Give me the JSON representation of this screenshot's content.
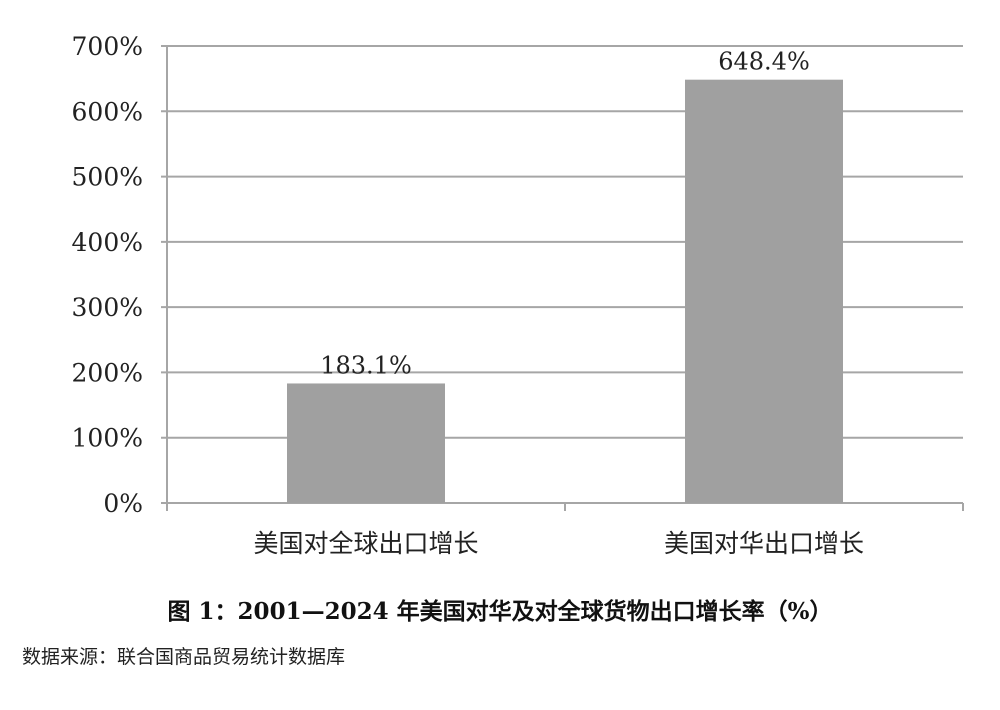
{
  "chart_data": {
    "type": "bar",
    "title": "图 1：2001—2024 年美国对华及对全球货物出口增长率（%）",
    "source": "数据来源：联合国商品贸易统计数据库",
    "categories": [
      "美国对全球出口增长",
      "美国对华出口增长"
    ],
    "values": [
      183.1,
      648.4
    ],
    "data_labels": [
      "183.1%",
      "648.4%"
    ],
    "ylim": [
      0,
      700
    ],
    "yticks": [
      0,
      100,
      200,
      300,
      400,
      500,
      600,
      700
    ],
    "ytick_labels": [
      "0%",
      "100%",
      "200%",
      "300%",
      "400%",
      "500%",
      "600%",
      "700%"
    ],
    "xlabel": "",
    "ylabel": "",
    "grid": true,
    "colors": {
      "bar": "#a0a0a0",
      "grid": "#a6a6a6",
      "text": "#222222"
    }
  }
}
